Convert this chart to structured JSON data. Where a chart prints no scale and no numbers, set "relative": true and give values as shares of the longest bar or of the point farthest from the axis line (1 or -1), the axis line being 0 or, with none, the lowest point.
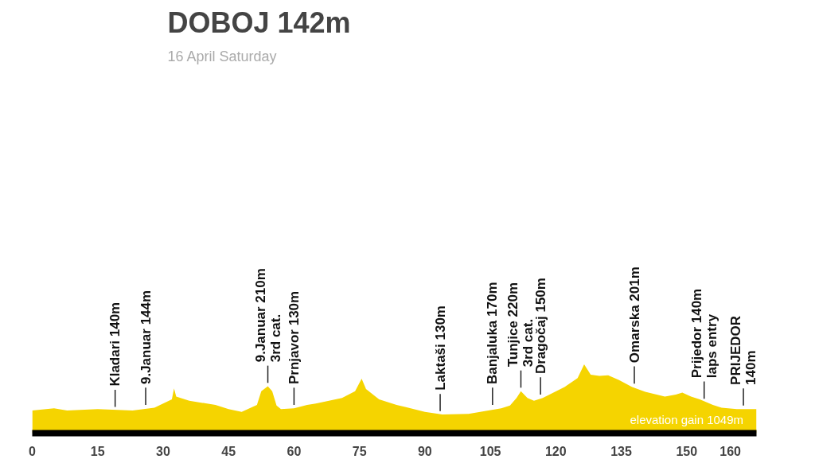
{
  "chart_data": {
    "type": "area",
    "title": "DOBOJ 142m",
    "subtitle": "16 April Saturday",
    "relative": true,
    "color": "#f5d400",
    "grid": false,
    "x": [
      0,
      5,
      8,
      15,
      23,
      28,
      30,
      32,
      32.5,
      33,
      36,
      42,
      45,
      48,
      51.5,
      52.5,
      54,
      55,
      56,
      57,
      60,
      63,
      65,
      71,
      74,
      75.5,
      76.5,
      79.5,
      83.5,
      90,
      94,
      100,
      107.5,
      109.5,
      111,
      112,
      113.5,
      115,
      117,
      122,
      125,
      126.5,
      128,
      130,
      132,
      134.5,
      137.5,
      140.5,
      145,
      147.5,
      149,
      151,
      153,
      156,
      158,
      161.5,
      166
    ],
    "values": [
      0.33,
      0.36,
      0.33,
      0.35,
      0.33,
      0.37,
      0.43,
      0.49,
      0.65,
      0.53,
      0.47,
      0.41,
      0.35,
      0.31,
      0.41,
      0.61,
      0.68,
      0.61,
      0.4,
      0.35,
      0.36,
      0.41,
      0.43,
      0.51,
      0.61,
      0.79,
      0.64,
      0.49,
      0.41,
      0.31,
      0.27,
      0.28,
      0.36,
      0.4,
      0.51,
      0.61,
      0.51,
      0.47,
      0.51,
      0.67,
      0.8,
      1,
      0.85,
      0.83,
      0.84,
      0.77,
      0.67,
      0.6,
      0.53,
      0.56,
      0.59,
      0.53,
      0.49,
      0.41,
      0.37,
      0.35,
      0.35
    ],
    "xlim": [
      0,
      166
    ],
    "xticks": [
      0,
      15,
      30,
      45,
      60,
      75,
      90,
      105,
      120,
      135,
      150,
      160
    ],
    "annotations": [
      {
        "text": "Kladari 140m",
        "x": 19,
        "y": 0.33
      },
      {
        "text": "9.Januar  144m",
        "x": 26,
        "y": 0.36
      },
      {
        "text": "9.Januar 210m\n3rd cat.",
        "x": 54,
        "y": 0.68
      },
      {
        "text": "Prnjavor 130m",
        "x": 60,
        "y": 0.36
      },
      {
        "text": "Laktaši 130m",
        "x": 93.5,
        "y": 0.27
      },
      {
        "text": "Banjaluka 170m",
        "x": 105.5,
        "y": 0.36
      },
      {
        "text": "Tunjice 220m\n3rd cat.",
        "x": 112,
        "y": 0.61
      },
      {
        "text": "Dragočaj 150m",
        "x": 116.5,
        "y": 0.51
      },
      {
        "text": "Omarska  201m",
        "x": 138,
        "y": 0.67
      },
      {
        "text": "Prijedor 140m\nlaps entry",
        "x": 154,
        "y": 0.45
      },
      {
        "text": "PRIJEDOR\n140m",
        "x": 163,
        "y": 0.35
      },
      "elevation gain 1049m"
    ]
  }
}
